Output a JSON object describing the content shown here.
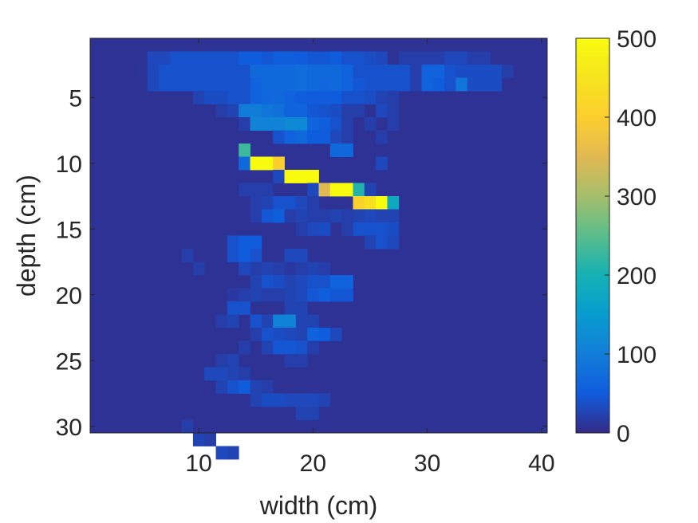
{
  "chart_data": {
    "type": "heatmap",
    "title": "",
    "xlabel": "width (cm)",
    "ylabel": "depth (cm)",
    "xlim": [
      0.5,
      40.5
    ],
    "ylim": [
      0.5,
      30.5
    ],
    "y_reversed": true,
    "xticks": [
      10,
      20,
      30,
      40
    ],
    "yticks": [
      5,
      10,
      15,
      20,
      25,
      30
    ],
    "grid": false,
    "colormap": "parula",
    "colorbar": {
      "location": "right",
      "limits": [
        0,
        500
      ],
      "ticks": [
        0,
        100,
        200,
        300,
        400,
        500
      ]
    },
    "background_value": 8,
    "cells": [
      [
        2,
        6,
        30
      ],
      [
        2,
        7,
        30
      ],
      [
        2,
        8,
        40
      ],
      [
        2,
        9,
        40
      ],
      [
        2,
        10,
        40
      ],
      [
        2,
        11,
        40
      ],
      [
        2,
        12,
        40
      ],
      [
        2,
        13,
        40
      ],
      [
        2,
        14,
        50
      ],
      [
        2,
        15,
        50
      ],
      [
        2,
        16,
        45
      ],
      [
        2,
        17,
        55
      ],
      [
        2,
        18,
        55
      ],
      [
        2,
        19,
        50
      ],
      [
        2,
        20,
        45
      ],
      [
        2,
        21,
        45
      ],
      [
        2,
        22,
        50
      ],
      [
        2,
        23,
        40
      ],
      [
        2,
        24,
        40
      ],
      [
        2,
        25,
        35
      ],
      [
        2,
        26,
        30
      ],
      [
        2,
        28,
        20
      ],
      [
        2,
        29,
        20
      ],
      [
        2,
        30,
        20
      ],
      [
        2,
        31,
        20
      ],
      [
        2,
        32,
        30
      ],
      [
        2,
        33,
        30
      ],
      [
        2,
        34,
        20
      ],
      [
        2,
        35,
        20
      ],
      [
        3,
        5,
        10
      ],
      [
        3,
        6,
        30
      ],
      [
        3,
        7,
        40
      ],
      [
        3,
        8,
        40
      ],
      [
        3,
        9,
        40
      ],
      [
        3,
        10,
        40
      ],
      [
        3,
        11,
        40
      ],
      [
        3,
        12,
        40
      ],
      [
        3,
        13,
        40
      ],
      [
        3,
        14,
        40
      ],
      [
        3,
        15,
        70
      ],
      [
        3,
        16,
        70
      ],
      [
        3,
        17,
        70
      ],
      [
        3,
        18,
        70
      ],
      [
        3,
        19,
        75
      ],
      [
        3,
        20,
        70
      ],
      [
        3,
        21,
        70
      ],
      [
        3,
        22,
        70
      ],
      [
        3,
        23,
        60
      ],
      [
        3,
        24,
        40
      ],
      [
        3,
        25,
        40
      ],
      [
        3,
        26,
        40
      ],
      [
        3,
        27,
        40
      ],
      [
        3,
        28,
        40
      ],
      [
        3,
        29,
        20
      ],
      [
        3,
        30,
        60
      ],
      [
        3,
        31,
        60
      ],
      [
        3,
        32,
        40
      ],
      [
        3,
        33,
        35
      ],
      [
        3,
        34,
        35
      ],
      [
        3,
        35,
        35
      ],
      [
        3,
        36,
        35
      ],
      [
        3,
        37,
        20
      ],
      [
        4,
        6,
        30
      ],
      [
        4,
        7,
        40
      ],
      [
        4,
        8,
        40
      ],
      [
        4,
        9,
        40
      ],
      [
        4,
        10,
        40
      ],
      [
        4,
        11,
        40
      ],
      [
        4,
        12,
        40
      ],
      [
        4,
        13,
        40
      ],
      [
        4,
        14,
        40
      ],
      [
        4,
        15,
        60
      ],
      [
        4,
        16,
        70
      ],
      [
        4,
        17,
        70
      ],
      [
        4,
        18,
        70
      ],
      [
        4,
        19,
        75
      ],
      [
        4,
        20,
        70
      ],
      [
        4,
        21,
        65
      ],
      [
        4,
        22,
        70
      ],
      [
        4,
        23,
        60
      ],
      [
        4,
        24,
        45
      ],
      [
        4,
        25,
        40
      ],
      [
        4,
        26,
        40
      ],
      [
        4,
        27,
        40
      ],
      [
        4,
        28,
        40
      ],
      [
        4,
        29,
        20
      ],
      [
        4,
        30,
        60
      ],
      [
        4,
        31,
        55
      ],
      [
        4,
        32,
        40
      ],
      [
        4,
        33,
        90
      ],
      [
        4,
        34,
        35
      ],
      [
        4,
        35,
        35
      ],
      [
        4,
        36,
        35
      ],
      [
        5,
        10,
        25
      ],
      [
        5,
        11,
        35
      ],
      [
        5,
        12,
        35
      ],
      [
        5,
        13,
        40
      ],
      [
        5,
        14,
        40
      ],
      [
        5,
        15,
        60
      ],
      [
        5,
        16,
        65
      ],
      [
        5,
        17,
        70
      ],
      [
        5,
        18,
        60
      ],
      [
        5,
        19,
        55
      ],
      [
        5,
        20,
        50
      ],
      [
        5,
        21,
        50
      ],
      [
        5,
        22,
        50
      ],
      [
        5,
        23,
        40
      ],
      [
        5,
        24,
        40
      ],
      [
        5,
        25,
        35
      ],
      [
        5,
        26,
        25
      ],
      [
        5,
        27,
        20
      ],
      [
        6,
        12,
        20
      ],
      [
        6,
        13,
        25
      ],
      [
        6,
        14,
        100
      ],
      [
        6,
        15,
        100
      ],
      [
        6,
        16,
        90
      ],
      [
        6,
        17,
        80
      ],
      [
        6,
        18,
        60
      ],
      [
        6,
        19,
        60
      ],
      [
        6,
        20,
        45
      ],
      [
        6,
        21,
        40
      ],
      [
        6,
        22,
        35
      ],
      [
        6,
        23,
        20
      ],
      [
        6,
        24,
        20
      ],
      [
        6,
        26,
        30
      ],
      [
        6,
        27,
        20
      ],
      [
        7,
        14,
        20
      ],
      [
        7,
        15,
        110
      ],
      [
        7,
        16,
        110
      ],
      [
        7,
        17,
        110
      ],
      [
        7,
        18,
        120
      ],
      [
        7,
        19,
        120
      ],
      [
        7,
        20,
        60
      ],
      [
        7,
        21,
        55
      ],
      [
        7,
        22,
        40
      ],
      [
        7,
        23,
        20
      ],
      [
        7,
        25,
        20
      ],
      [
        7,
        27,
        20
      ],
      [
        8,
        17,
        40
      ],
      [
        8,
        18,
        60
      ],
      [
        8,
        19,
        70
      ],
      [
        8,
        20,
        50
      ],
      [
        8,
        21,
        50
      ],
      [
        8,
        22,
        30
      ],
      [
        8,
        23,
        20
      ],
      [
        8,
        26,
        20
      ],
      [
        9,
        14,
        230
      ],
      [
        9,
        22,
        70
      ],
      [
        9,
        23,
        70
      ],
      [
        10,
        14,
        70
      ],
      [
        10,
        15,
        500
      ],
      [
        10,
        16,
        500
      ],
      [
        10,
        17,
        400
      ],
      [
        10,
        26,
        30
      ],
      [
        11,
        17,
        30
      ],
      [
        11,
        18,
        500
      ],
      [
        11,
        19,
        500
      ],
      [
        11,
        20,
        500
      ],
      [
        12,
        14,
        20
      ],
      [
        12,
        15,
        20
      ],
      [
        12,
        16,
        20
      ],
      [
        12,
        20,
        30
      ],
      [
        12,
        21,
        350
      ],
      [
        12,
        22,
        500
      ],
      [
        12,
        23,
        500
      ],
      [
        12,
        24,
        210
      ],
      [
        12,
        25,
        25
      ],
      [
        13,
        15,
        20
      ],
      [
        13,
        16,
        25
      ],
      [
        13,
        17,
        40
      ],
      [
        13,
        18,
        40
      ],
      [
        13,
        19,
        30
      ],
      [
        13,
        20,
        20
      ],
      [
        13,
        24,
        410
      ],
      [
        13,
        25,
        440
      ],
      [
        13,
        26,
        500
      ],
      [
        13,
        27,
        180
      ],
      [
        14,
        15,
        20
      ],
      [
        14,
        16,
        45
      ],
      [
        14,
        17,
        55
      ],
      [
        14,
        18,
        20
      ],
      [
        14,
        19,
        25
      ],
      [
        14,
        20,
        20
      ],
      [
        14,
        21,
        20
      ],
      [
        14,
        22,
        25
      ],
      [
        14,
        23,
        20
      ],
      [
        14,
        24,
        25
      ],
      [
        14,
        25,
        30
      ],
      [
        14,
        26,
        25
      ],
      [
        14,
        27,
        25
      ],
      [
        15,
        19,
        20
      ],
      [
        15,
        20,
        30
      ],
      [
        15,
        21,
        35
      ],
      [
        15,
        23,
        20
      ],
      [
        15,
        24,
        40
      ],
      [
        15,
        25,
        40
      ],
      [
        15,
        26,
        40
      ],
      [
        15,
        27,
        35
      ],
      [
        16,
        13,
        40
      ],
      [
        16,
        14,
        50
      ],
      [
        16,
        15,
        50
      ],
      [
        16,
        25,
        25
      ],
      [
        16,
        26,
        40
      ],
      [
        16,
        27,
        30
      ],
      [
        17,
        9,
        20
      ],
      [
        17,
        13,
        40
      ],
      [
        17,
        14,
        50
      ],
      [
        17,
        15,
        40
      ],
      [
        17,
        18,
        30
      ],
      [
        17,
        19,
        30
      ],
      [
        18,
        10,
        20
      ],
      [
        18,
        14,
        30
      ],
      [
        18,
        15,
        20
      ],
      [
        18,
        16,
        25
      ],
      [
        18,
        17,
        20
      ],
      [
        18,
        18,
        15
      ],
      [
        18,
        19,
        20
      ],
      [
        18,
        20,
        25
      ],
      [
        18,
        21,
        20
      ],
      [
        19,
        15,
        25
      ],
      [
        19,
        16,
        40
      ],
      [
        19,
        17,
        35
      ],
      [
        19,
        18,
        25
      ],
      [
        19,
        19,
        30
      ],
      [
        19,
        20,
        40
      ],
      [
        19,
        21,
        40
      ],
      [
        19,
        22,
        60
      ],
      [
        19,
        23,
        60
      ],
      [
        20,
        13,
        15
      ],
      [
        20,
        14,
        20
      ],
      [
        20,
        15,
        25
      ],
      [
        20,
        16,
        20
      ],
      [
        20,
        17,
        20
      ],
      [
        20,
        18,
        25
      ],
      [
        20,
        19,
        30
      ],
      [
        20,
        20,
        45
      ],
      [
        20,
        21,
        55
      ],
      [
        20,
        22,
        45
      ],
      [
        20,
        23,
        45
      ],
      [
        21,
        13,
        40
      ],
      [
        21,
        14,
        40
      ],
      [
        21,
        18,
        25
      ],
      [
        21,
        19,
        25
      ],
      [
        22,
        12,
        20
      ],
      [
        22,
        13,
        25
      ],
      [
        22,
        15,
        40
      ],
      [
        22,
        16,
        25
      ],
      [
        22,
        17,
        110
      ],
      [
        22,
        18,
        110
      ],
      [
        22,
        19,
        25
      ],
      [
        22,
        20,
        25
      ],
      [
        23,
        15,
        20
      ],
      [
        23,
        16,
        40
      ],
      [
        23,
        17,
        35
      ],
      [
        23,
        18,
        30
      ],
      [
        23,
        19,
        25
      ],
      [
        23,
        20,
        60
      ],
      [
        23,
        21,
        50
      ],
      [
        23,
        22,
        30
      ],
      [
        24,
        14,
        20
      ],
      [
        24,
        16,
        25
      ],
      [
        24,
        17,
        45
      ],
      [
        24,
        18,
        45
      ],
      [
        24,
        19,
        40
      ],
      [
        24,
        20,
        20
      ],
      [
        25,
        12,
        20
      ],
      [
        25,
        13,
        25
      ],
      [
        25,
        18,
        20
      ],
      [
        25,
        19,
        20
      ],
      [
        26,
        11,
        30
      ],
      [
        26,
        12,
        30
      ],
      [
        26,
        13,
        25
      ],
      [
        26,
        14,
        20
      ],
      [
        27,
        12,
        25
      ],
      [
        27,
        13,
        40
      ],
      [
        27,
        14,
        50
      ],
      [
        27,
        15,
        25
      ],
      [
        27,
        16,
        20
      ],
      [
        28,
        15,
        25
      ],
      [
        28,
        16,
        35
      ],
      [
        28,
        17,
        35
      ],
      [
        28,
        18,
        30
      ],
      [
        28,
        19,
        30
      ],
      [
        28,
        20,
        30
      ],
      [
        28,
        21,
        25
      ],
      [
        29,
        19,
        25
      ],
      [
        29,
        20,
        25
      ],
      [
        30,
        9,
        20
      ],
      [
        31,
        10,
        25
      ],
      [
        31,
        11,
        20
      ],
      [
        32,
        12,
        30
      ],
      [
        32,
        13,
        25
      ]
    ]
  }
}
